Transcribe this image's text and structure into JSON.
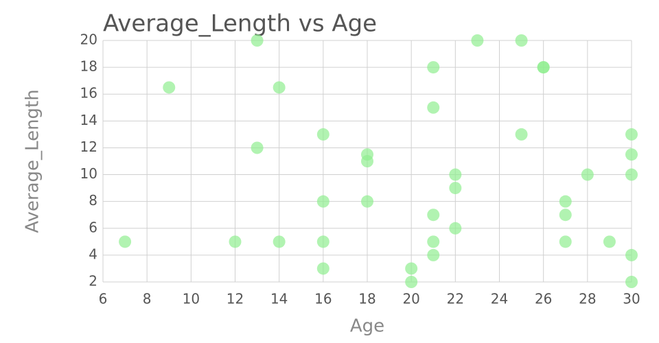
{
  "chart_data": {
    "type": "scatter",
    "title": "Average_Length vs Age",
    "x_label": "Age",
    "y_label": "Average_Length",
    "x": [
      7,
      9,
      12,
      13,
      13,
      14,
      14,
      16,
      16,
      16,
      16,
      18,
      18,
      18,
      20,
      20,
      21,
      21,
      21,
      21,
      21,
      22,
      22,
      22,
      23,
      25,
      25,
      26,
      26,
      27,
      27,
      27,
      28,
      29,
      30,
      30,
      30,
      30,
      30
    ],
    "values": [
      5,
      16.5,
      5,
      20,
      12,
      16.5,
      5,
      13,
      8,
      5,
      3,
      11.5,
      11,
      8,
      3,
      2,
      18,
      15,
      7,
      5,
      4,
      10,
      9,
      6,
      20,
      20,
      13,
      18,
      18,
      8,
      7,
      5,
      10,
      5,
      13,
      11.5,
      10,
      4,
      2
    ],
    "color": "#90ee90",
    "xlim": [
      6,
      30
    ],
    "xticks": [
      6,
      8,
      10,
      12,
      14,
      16,
      18,
      20,
      22,
      24,
      26,
      28,
      30
    ],
    "ylim": [
      2,
      20
    ],
    "yticks": [
      2,
      4,
      6,
      8,
      10,
      12,
      14,
      16,
      18,
      20
    ],
    "grid": true
  }
}
